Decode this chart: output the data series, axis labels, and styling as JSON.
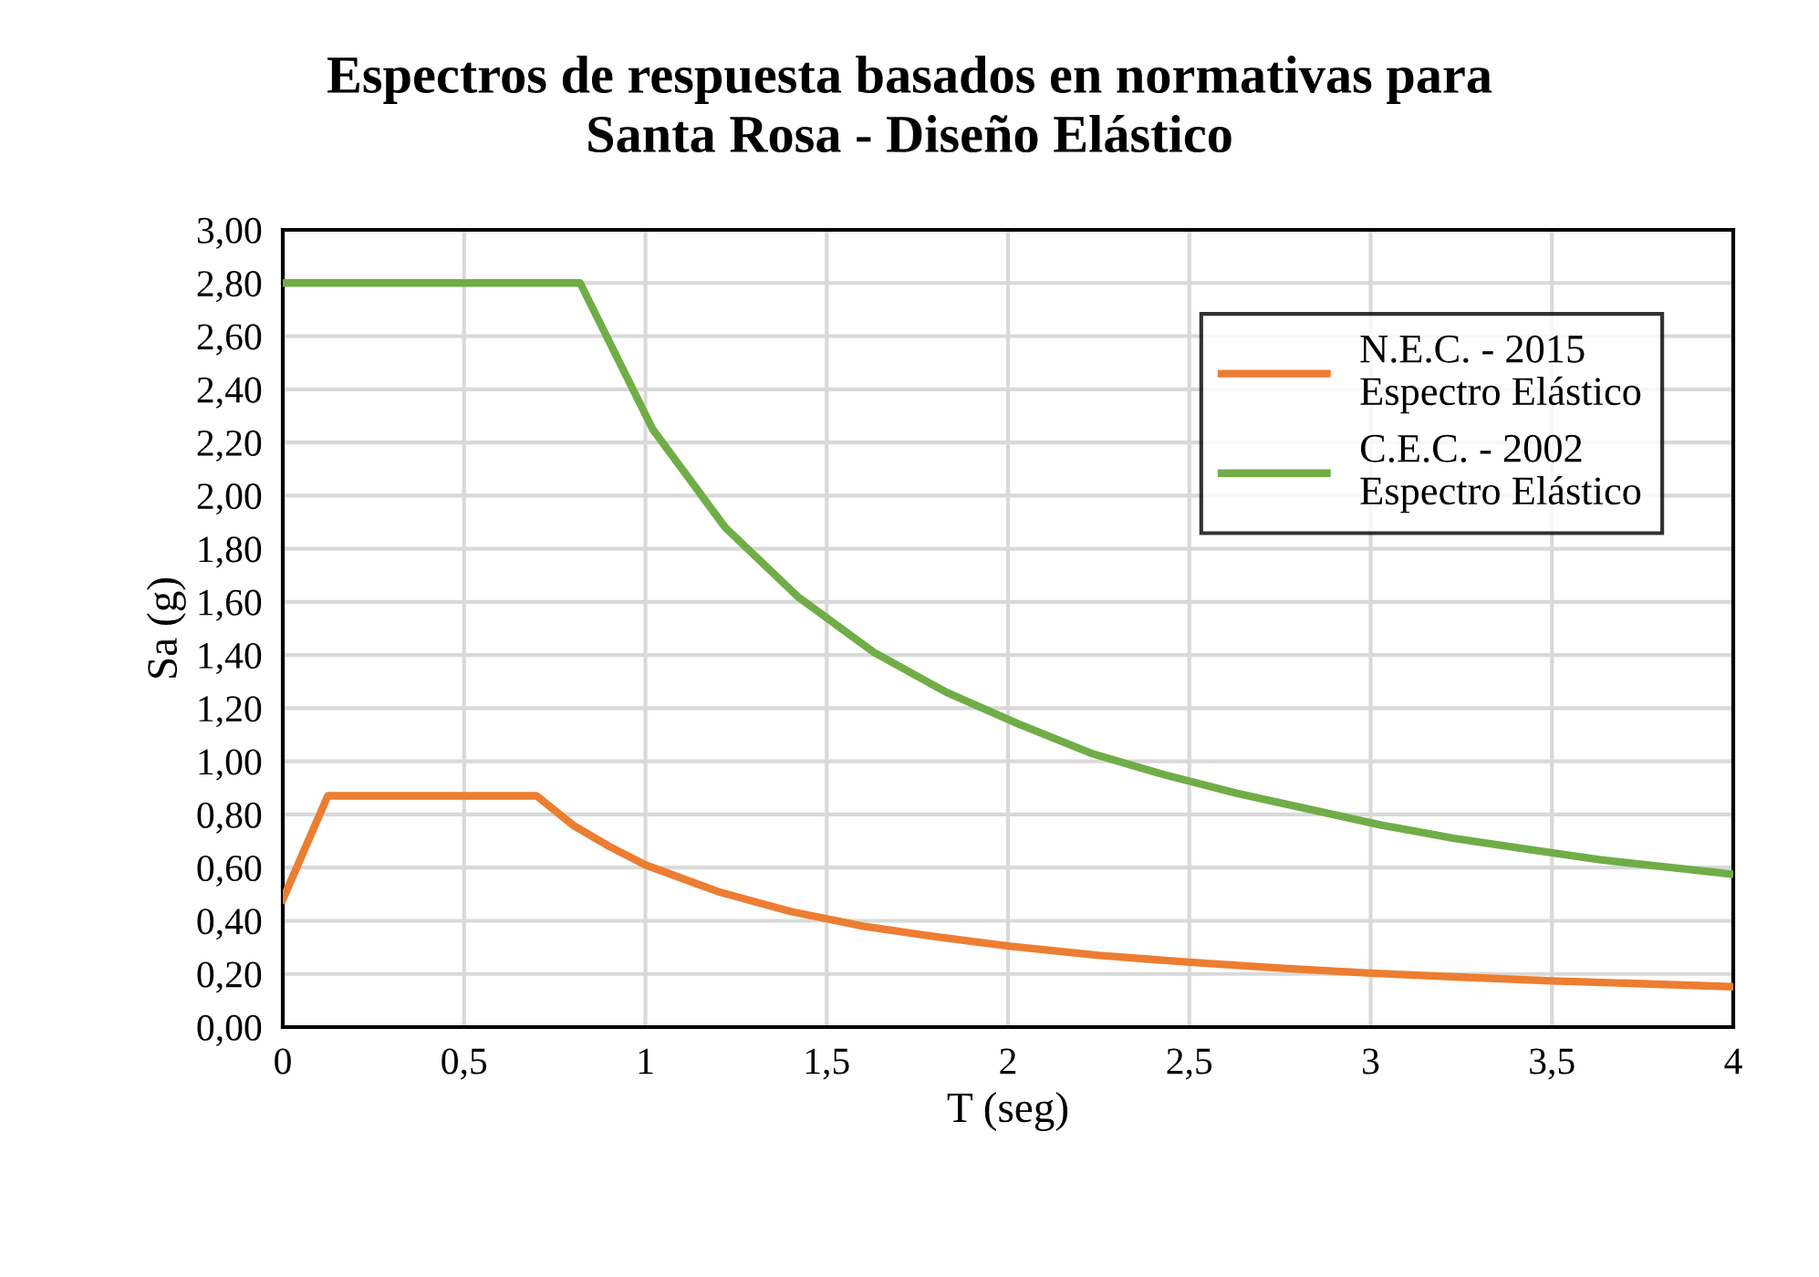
{
  "chart_data": {
    "type": "line",
    "title": "Espectros de respuesta basados en normativas para\nSanta Rosa - Diseño Elástico",
    "xlabel": "T (seg)",
    "ylabel": "Sa (g)",
    "series": [
      {
        "name": "N.E.C. - 2015\nEspectro Elástico",
        "color": "#ed7d31",
        "x": [
          0,
          0.124,
          0.7,
          0.8,
          0.9,
          1.0,
          1.2,
          1.4,
          1.6,
          1.8,
          2.0,
          2.25,
          2.5,
          2.75,
          3.0,
          3.25,
          3.5,
          3.75,
          4.0
        ],
        "values": [
          0.48,
          0.87,
          0.87,
          0.76,
          0.68,
          0.61,
          0.51,
          0.435,
          0.38,
          0.34,
          0.305,
          0.27,
          0.244,
          0.222,
          0.203,
          0.188,
          0.174,
          0.163,
          0.152
        ]
      },
      {
        "name": "C.E.C. - 2002\nEspectro Elástico",
        "color": "#70ad47",
        "x": [
          0,
          0.82,
          1.02,
          1.22,
          1.42,
          1.63,
          1.83,
          2.03,
          2.23,
          2.43,
          2.63,
          2.83,
          3.03,
          3.23,
          3.43,
          3.63,
          3.83,
          4.0
        ],
        "values": [
          2.8,
          2.8,
          2.25,
          1.88,
          1.62,
          1.41,
          1.26,
          1.14,
          1.03,
          0.95,
          0.88,
          0.82,
          0.76,
          0.71,
          0.67,
          0.63,
          0.6,
          0.575
        ]
      }
    ],
    "xlim": [
      0,
      4
    ],
    "ylim": [
      0,
      3
    ],
    "xticks": [
      0,
      {
        "value": 0.5,
        "label": "0,5"
      },
      1,
      {
        "value": 1.5,
        "label": "1,5"
      },
      2,
      {
        "value": 2.5,
        "label": "2,5"
      },
      3,
      {
        "value": 3.5,
        "label": "3,5"
      },
      4
    ],
    "yticks": [
      {
        "value": 0,
        "label": "0,00"
      },
      {
        "value": 0.2,
        "label": "0,20"
      },
      {
        "value": 0.4,
        "label": "0,40"
      },
      {
        "value": 0.6,
        "label": "0,60"
      },
      {
        "value": 0.8,
        "label": "0,80"
      },
      {
        "value": 1.0,
        "label": "1,00"
      },
      {
        "value": 1.2,
        "label": "1,20"
      },
      {
        "value": 1.4,
        "label": "1,40"
      },
      {
        "value": 1.6,
        "label": "1,60"
      },
      {
        "value": 1.8,
        "label": "1,80"
      },
      {
        "value": 2.0,
        "label": "2,00"
      },
      {
        "value": 2.2,
        "label": "2,20"
      },
      {
        "value": 2.4,
        "label": "2,40"
      },
      {
        "value": 2.6,
        "label": "2,60"
      },
      {
        "value": 2.8,
        "label": "2,80"
      },
      {
        "value": 3.0,
        "label": "3,00"
      }
    ],
    "grid": true,
    "legend": "top right",
    "marker": "none",
    "line_style": "solid"
  }
}
